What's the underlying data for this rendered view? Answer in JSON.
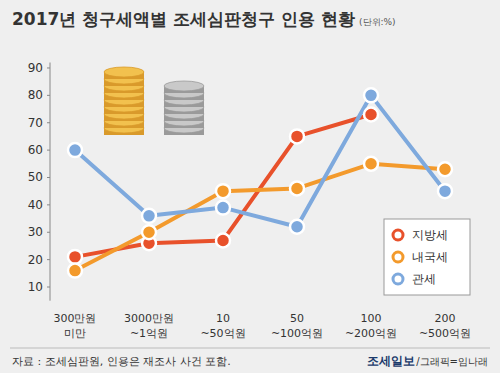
{
  "chart_data": {
    "type": "line",
    "title": "2017년 청구세액별 조세심판청구 인용 현황",
    "subtitle": "(단위:%)",
    "categories": [
      "300만원\n미만",
      "3000만원\n~1억원",
      "10\n~50억원",
      "50\n~100억원",
      "100\n~200억원",
      "200\n~500억원"
    ],
    "series": [
      {
        "name": "지방세",
        "color": "#e8512b",
        "values": [
          21,
          26,
          27,
          65,
          73,
          null
        ]
      },
      {
        "name": "내국세",
        "color": "#f39a2c",
        "values": [
          16,
          30,
          45,
          46,
          55,
          53
        ]
      },
      {
        "name": "관세",
        "color": "#7ea9dd",
        "values": [
          60,
          36,
          39,
          32,
          80,
          45
        ]
      }
    ],
    "ylim": [
      5,
      92
    ],
    "yticks": [
      10,
      20,
      30,
      40,
      50,
      60,
      70,
      80,
      90
    ],
    "grid": false,
    "legend": "bottom-right",
    "marker": "circle",
    "source": "자료 : 조세심판원, 인용은 재조사 사건 포함.",
    "credit_logo": "조세일보",
    "credit": "/그래픽=임나래"
  }
}
